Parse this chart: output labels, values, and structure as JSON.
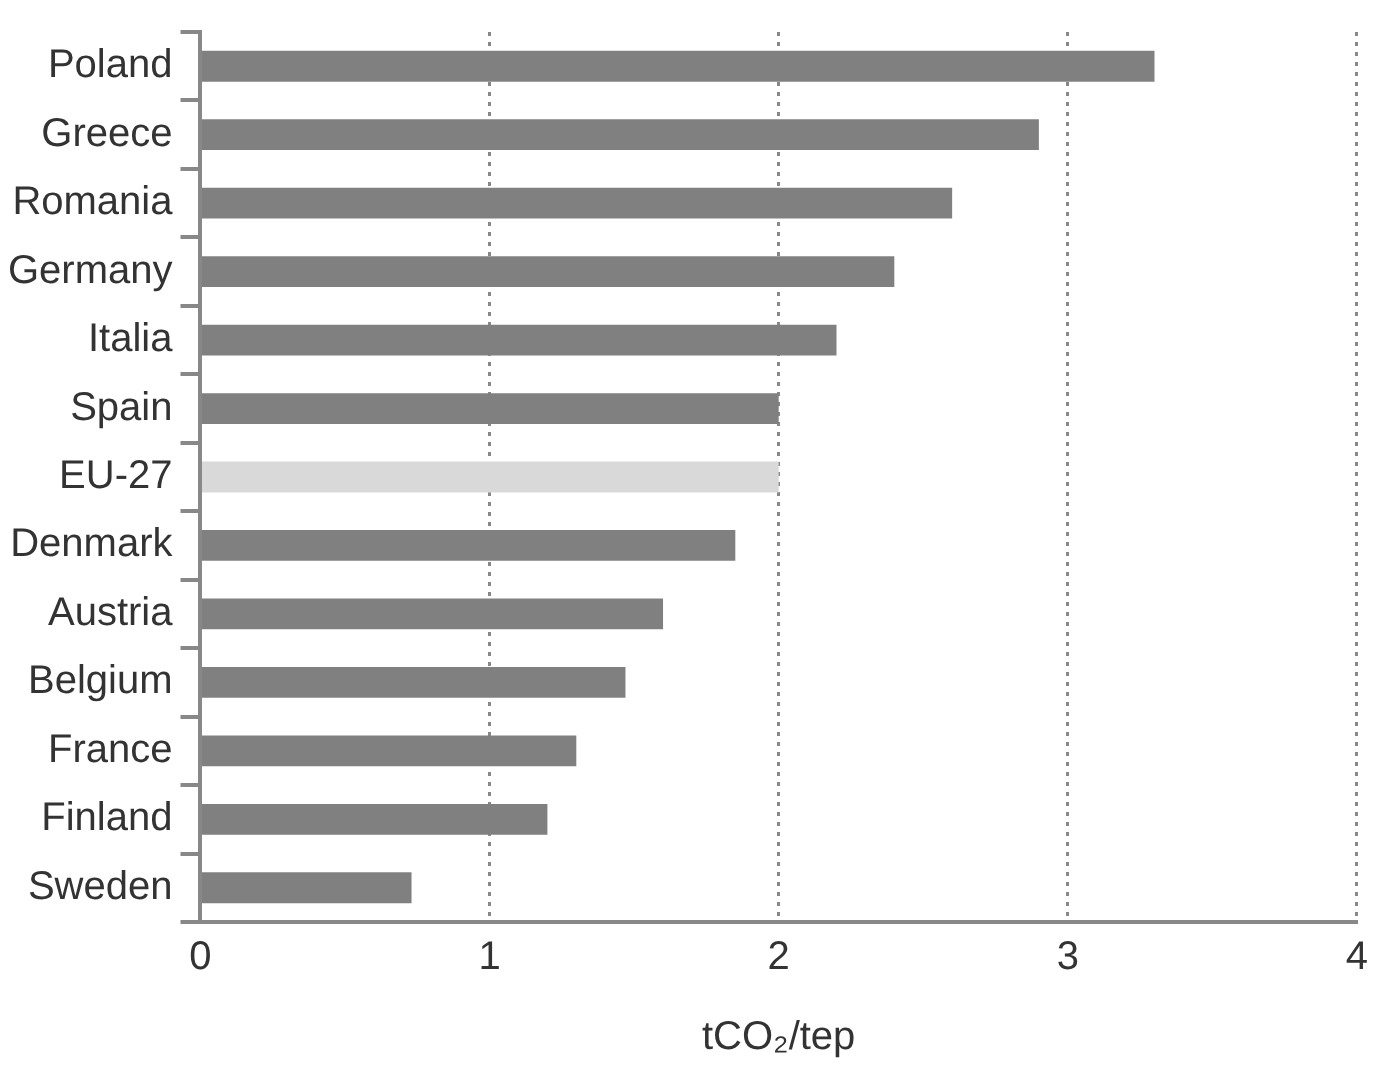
{
  "chart_data": {
    "type": "bar",
    "orientation": "horizontal",
    "xlabel": "tCO₂/tep",
    "categories": [
      "Poland",
      "Greece",
      "Romania",
      "Germany",
      "Italia",
      "Spain",
      "EU-27",
      "Denmark",
      "Austria",
      "Belgium",
      "France",
      "Finland",
      "Sweden"
    ],
    "values": [
      3.3,
      2.9,
      2.6,
      2.4,
      2.2,
      2.0,
      2.0,
      1.85,
      1.6,
      1.47,
      1.3,
      1.2,
      0.73
    ],
    "colors": [
      "#808080",
      "#808080",
      "#808080",
      "#808080",
      "#808080",
      "#808080",
      "#d9d9d9",
      "#808080",
      "#808080",
      "#808080",
      "#808080",
      "#808080",
      "#808080"
    ],
    "xlim": [
      0,
      4
    ],
    "xticks": [
      0,
      1,
      2,
      3,
      4
    ],
    "grid": "x",
    "legend": false
  }
}
